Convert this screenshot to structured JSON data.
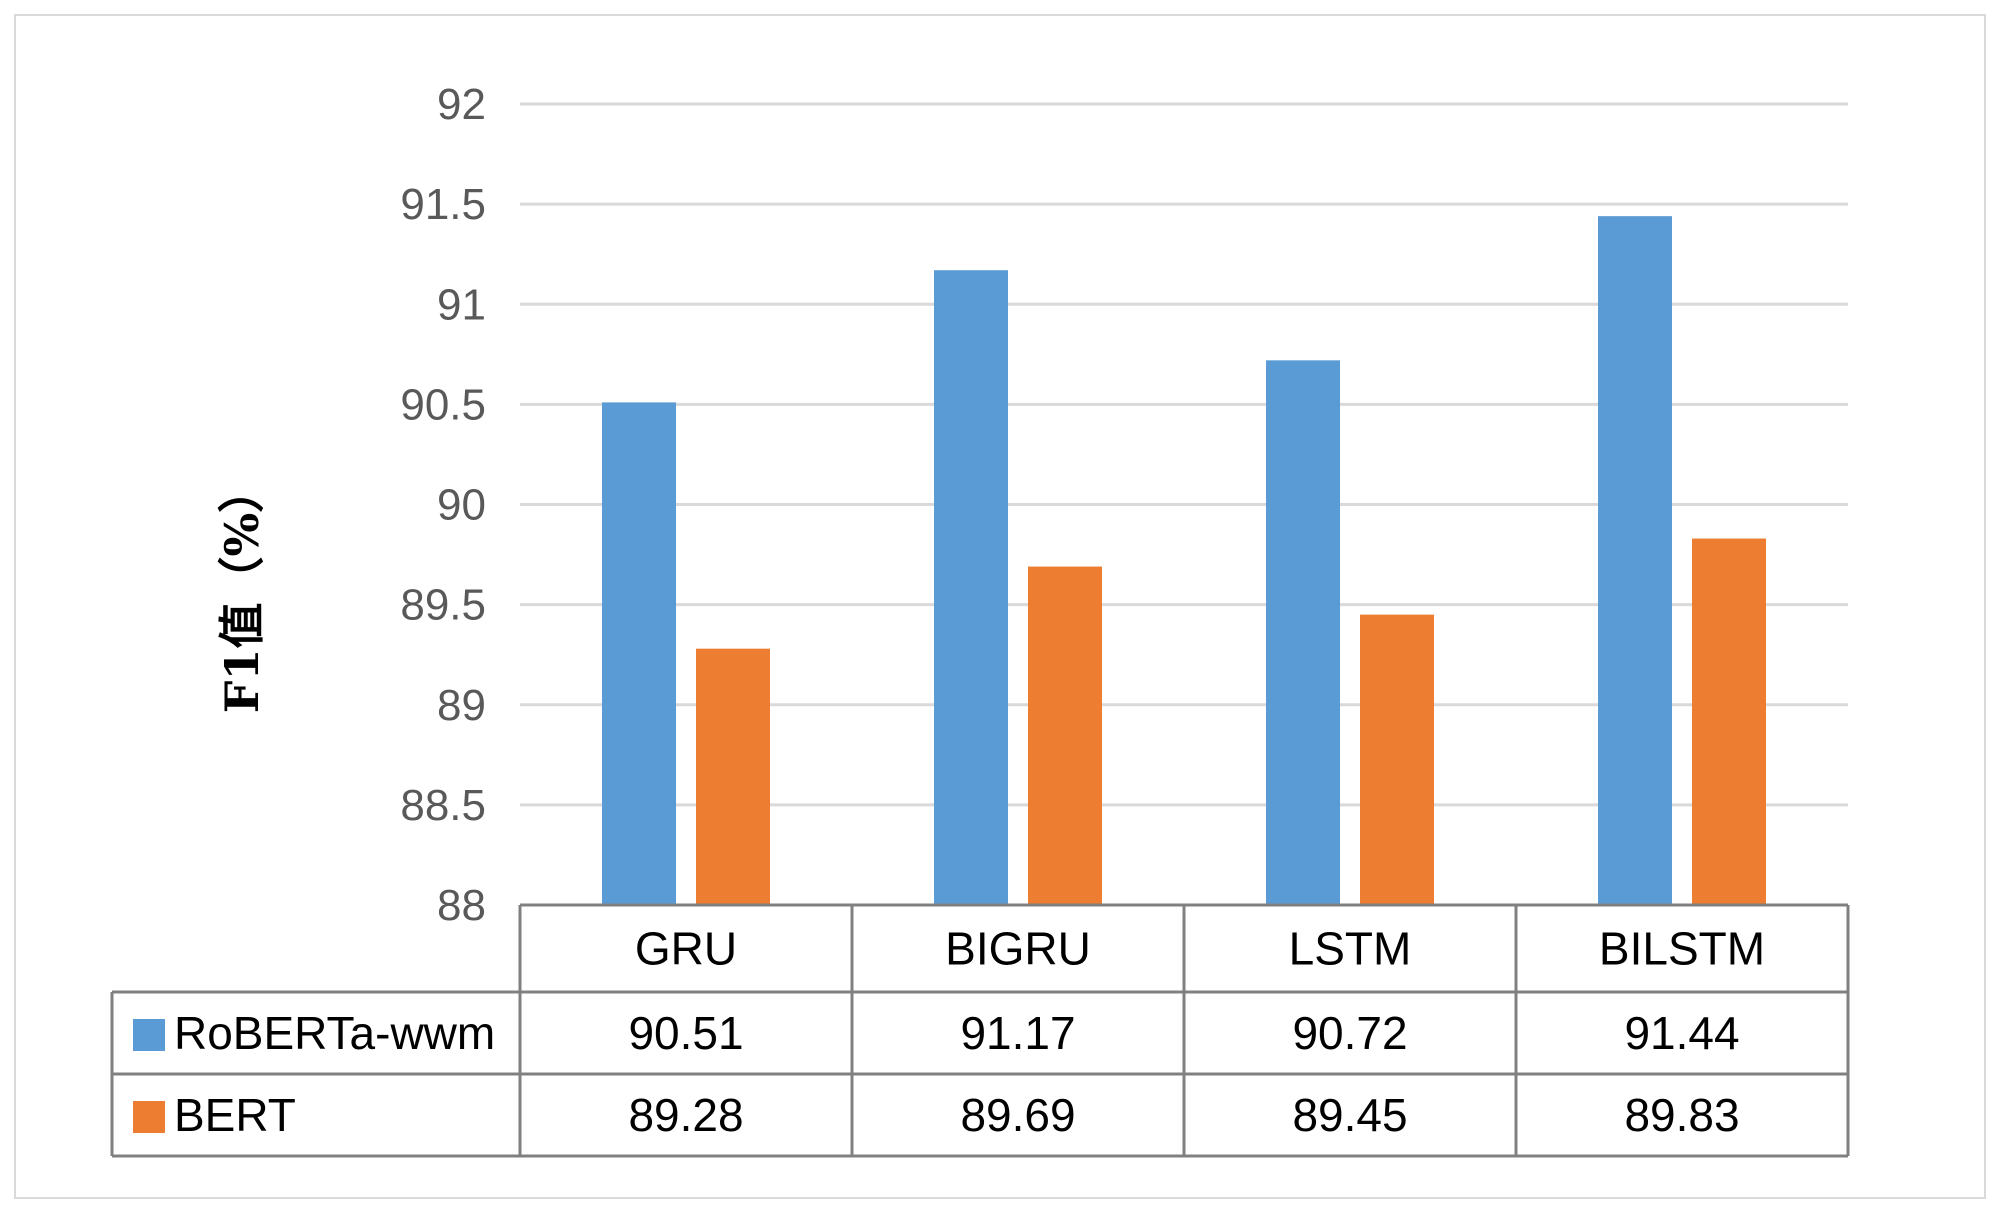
{
  "chart_data": {
    "type": "bar",
    "title": "",
    "xlabel": "",
    "ylabel": "F1值（%）",
    "ylim": [
      88,
      92
    ],
    "yticks": [
      "88",
      "88.5",
      "89",
      "89.5",
      "90",
      "90.5",
      "91",
      "91.5",
      "92"
    ],
    "grid": true,
    "legend": "data-table",
    "categories": [
      "GRU",
      "BIGRU",
      "LSTM",
      "BILSTM"
    ],
    "series": [
      {
        "name": "RoBERTa-wwm",
        "color": "#5b9bd5",
        "values": [
          90.51,
          91.17,
          90.72,
          91.44
        ],
        "labels": [
          "90.51",
          "91.17",
          "90.72",
          "91.44"
        ]
      },
      {
        "name": "BERT",
        "color": "#ed7d31",
        "values": [
          89.28,
          89.69,
          89.45,
          89.83
        ],
        "labels": [
          "89.28",
          "89.69",
          "89.45",
          "89.83"
        ]
      }
    ]
  }
}
